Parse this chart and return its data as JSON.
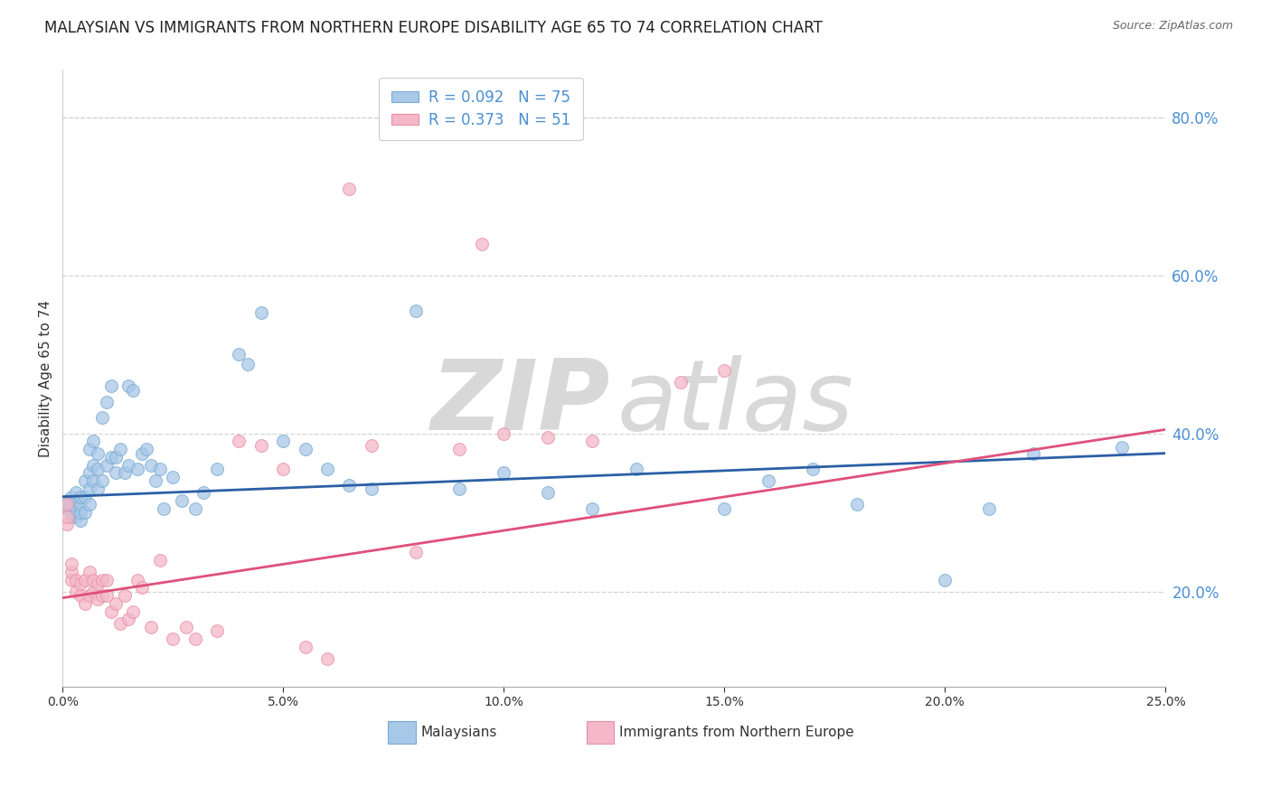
{
  "title": "MALAYSIAN VS IMMIGRANTS FROM NORTHERN EUROPE DISABILITY AGE 65 TO 74 CORRELATION CHART",
  "source": "Source: ZipAtlas.com",
  "ylabel": "Disability Age 65 to 74",
  "xlim": [
    0.0,
    0.25
  ],
  "ylim": [
    0.08,
    0.86
  ],
  "yticks_right": [
    0.2,
    0.4,
    0.6,
    0.8
  ],
  "xticks": [
    0.0,
    0.05,
    0.1,
    0.15,
    0.2,
    0.25
  ],
  "blue_color": "#a8c8e8",
  "pink_color": "#f4b8c8",
  "blue_edge_color": "#7aabcf",
  "pink_edge_color": "#e890a8",
  "blue_line_color": "#2b5fa5",
  "pink_line_color": "#e0507a",
  "blue_R": 0.092,
  "blue_N": 75,
  "pink_R": 0.373,
  "pink_N": 51,
  "blue_label": "Malaysians",
  "pink_label": "Immigrants from Northern Europe",
  "blue_trend_y0": 0.32,
  "blue_trend_y1": 0.375,
  "pink_trend_y0": 0.192,
  "pink_trend_y1": 0.405,
  "blue_scatter_x": [
    0.001,
    0.001,
    0.001,
    0.002,
    0.002,
    0.002,
    0.002,
    0.003,
    0.003,
    0.003,
    0.003,
    0.004,
    0.004,
    0.004,
    0.004,
    0.005,
    0.005,
    0.005,
    0.006,
    0.006,
    0.006,
    0.006,
    0.007,
    0.007,
    0.007,
    0.008,
    0.008,
    0.008,
    0.009,
    0.009,
    0.01,
    0.01,
    0.011,
    0.011,
    0.012,
    0.012,
    0.013,
    0.014,
    0.015,
    0.015,
    0.016,
    0.017,
    0.018,
    0.019,
    0.02,
    0.021,
    0.022,
    0.023,
    0.025,
    0.027,
    0.03,
    0.032,
    0.035,
    0.04,
    0.042,
    0.045,
    0.05,
    0.055,
    0.06,
    0.065,
    0.07,
    0.08,
    0.09,
    0.1,
    0.11,
    0.12,
    0.13,
    0.15,
    0.16,
    0.17,
    0.18,
    0.2,
    0.21,
    0.22,
    0.24
  ],
  "blue_scatter_y": [
    0.305,
    0.31,
    0.315,
    0.295,
    0.3,
    0.31,
    0.32,
    0.295,
    0.305,
    0.315,
    0.325,
    0.29,
    0.3,
    0.31,
    0.32,
    0.3,
    0.32,
    0.34,
    0.31,
    0.33,
    0.35,
    0.38,
    0.34,
    0.36,
    0.39,
    0.33,
    0.355,
    0.375,
    0.34,
    0.42,
    0.36,
    0.44,
    0.37,
    0.46,
    0.35,
    0.37,
    0.38,
    0.35,
    0.36,
    0.46,
    0.455,
    0.355,
    0.375,
    0.38,
    0.36,
    0.34,
    0.355,
    0.305,
    0.345,
    0.315,
    0.305,
    0.325,
    0.355,
    0.5,
    0.488,
    0.553,
    0.39,
    0.38,
    0.355,
    0.335,
    0.33,
    0.555,
    0.33,
    0.35,
    0.325,
    0.305,
    0.355,
    0.305,
    0.34,
    0.355,
    0.31,
    0.215,
    0.305,
    0.375,
    0.382
  ],
  "pink_scatter_x": [
    0.001,
    0.001,
    0.001,
    0.002,
    0.002,
    0.002,
    0.003,
    0.003,
    0.004,
    0.004,
    0.005,
    0.005,
    0.006,
    0.006,
    0.007,
    0.007,
    0.008,
    0.008,
    0.009,
    0.009,
    0.01,
    0.01,
    0.011,
    0.012,
    0.013,
    0.014,
    0.015,
    0.016,
    0.017,
    0.018,
    0.02,
    0.022,
    0.025,
    0.028,
    0.03,
    0.035,
    0.04,
    0.045,
    0.05,
    0.055,
    0.06,
    0.065,
    0.07,
    0.08,
    0.09,
    0.095,
    0.1,
    0.11,
    0.12,
    0.14,
    0.15
  ],
  "pink_scatter_y": [
    0.285,
    0.295,
    0.31,
    0.215,
    0.225,
    0.235,
    0.2,
    0.215,
    0.195,
    0.21,
    0.185,
    0.215,
    0.195,
    0.225,
    0.2,
    0.215,
    0.19,
    0.21,
    0.195,
    0.215,
    0.195,
    0.215,
    0.175,
    0.185,
    0.16,
    0.195,
    0.165,
    0.175,
    0.215,
    0.205,
    0.155,
    0.24,
    0.14,
    0.155,
    0.14,
    0.15,
    0.39,
    0.385,
    0.355,
    0.13,
    0.115,
    0.71,
    0.385,
    0.25,
    0.38,
    0.64,
    0.4,
    0.395,
    0.39,
    0.465,
    0.48
  ],
  "grid_color": "#d3d3d3",
  "bg_color": "#ffffff",
  "tick_color_right": "#4a8fd4",
  "title_fontsize": 12,
  "legend_fontsize": 12,
  "ylabel_fontsize": 11,
  "marker_size": 100,
  "marker_alpha": 0.75
}
